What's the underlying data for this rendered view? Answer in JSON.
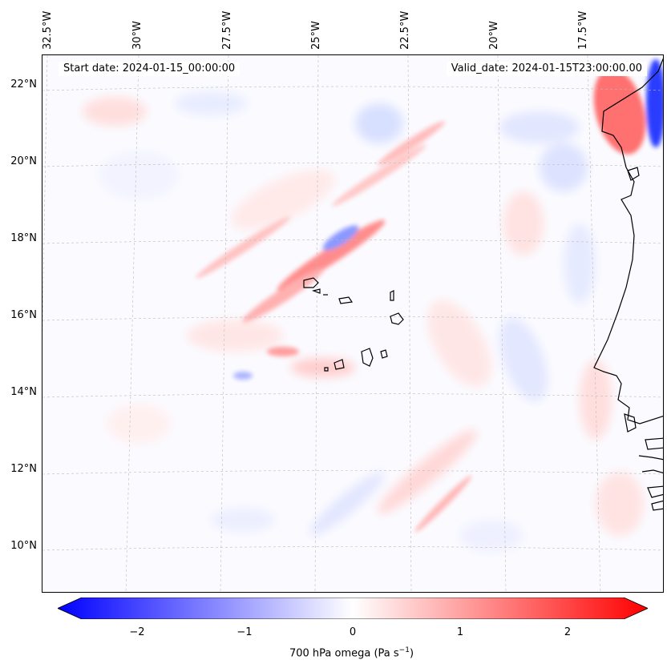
{
  "map": {
    "start_date": "Start date: 2024-01-15_00:00:00",
    "valid_date": "Valid_date: 2024-01-15T23:00:00.00",
    "lat_labels": [
      "22°N",
      "20°N",
      "18°N",
      "16°N",
      "14°N",
      "12°N",
      "10°N"
    ],
    "lon_labels": [
      "32.5°W",
      "30°W",
      "27.5°W",
      "25°W",
      "22.5°W",
      "20°W",
      "17.5°W"
    ],
    "colors": {
      "positive": "#ff0000",
      "negative": "#0000ff",
      "neutral": "#ffffff",
      "coast": "#000000"
    }
  },
  "colorbar": {
    "title_prefix": "700 hPa omega (Pa s",
    "title_exp": "−1",
    "title_suffix": ")",
    "ticks": [
      "−2",
      "−1",
      "0",
      "1",
      "2"
    ],
    "range": [
      -2.75,
      2.75
    ]
  }
}
